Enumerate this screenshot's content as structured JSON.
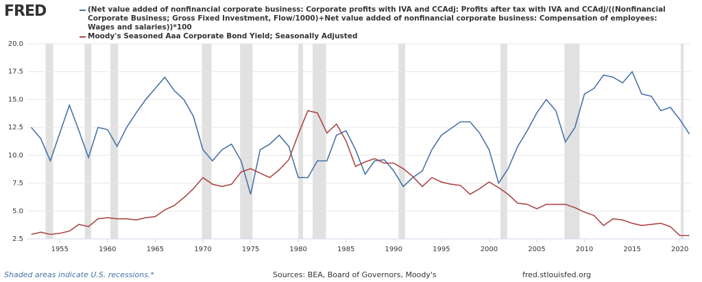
{
  "header": {
    "logo": "FRED"
  },
  "chart_data": {
    "type": "line",
    "x": [
      1952,
      1953,
      1954,
      1955,
      1956,
      1957,
      1958,
      1959,
      1960,
      1961,
      1962,
      1963,
      1964,
      1965,
      1966,
      1967,
      1968,
      1969,
      1970,
      1971,
      1972,
      1973,
      1974,
      1975,
      1976,
      1977,
      1978,
      1979,
      1980,
      1981,
      1982,
      1983,
      1984,
      1985,
      1986,
      1987,
      1988,
      1989,
      1990,
      1991,
      1992,
      1993,
      1994,
      1995,
      1996,
      1997,
      1998,
      1999,
      2000,
      2001,
      2002,
      2003,
      2004,
      2005,
      2006,
      2007,
      2008,
      2009,
      2010,
      2011,
      2012,
      2013,
      2014,
      2015,
      2016,
      2017,
      2018,
      2019,
      2020,
      2021
    ],
    "series": [
      {
        "name": "(Net value added of nonfinancial corporate business: Corporate profits with IVA and CCAdj: Profits after tax with IVA and CCAdj/((Nonfinancial Corporate Business; Gross Fixed Investment, Flow/1000)+Net value added of nonfinancial corporate business: Compensation of employees: Wages and salaries))*100",
        "color": "#4572a7",
        "values": [
          12.5,
          11.5,
          9.5,
          12.0,
          14.5,
          12.2,
          9.8,
          12.5,
          12.3,
          10.8,
          12.5,
          13.8,
          15.0,
          16.0,
          17.0,
          15.8,
          15.0,
          13.5,
          10.5,
          9.5,
          10.5,
          11.0,
          9.5,
          6.5,
          10.5,
          11.0,
          11.8,
          10.8,
          8.0,
          8.0,
          9.5,
          9.5,
          11.8,
          12.2,
          10.5,
          8.3,
          9.5,
          9.6,
          8.6,
          7.2,
          8.0,
          8.6,
          10.5,
          11.8,
          12.4,
          13.0,
          13.0,
          12.0,
          10.5,
          7.5,
          8.8,
          10.8,
          12.2,
          13.8,
          15.0,
          14.0,
          11.2,
          12.5,
          15.5,
          16.0,
          17.2,
          17.0,
          16.5,
          17.5,
          15.5,
          15.3,
          14.0,
          14.3,
          13.2,
          11.9
        ]
      },
      {
        "name": "Moody's Seasoned Aaa Corporate Bond Yield; Seasonally Adjusted",
        "color": "#aa4643",
        "values": [
          2.9,
          3.1,
          2.9,
          3.0,
          3.2,
          3.8,
          3.6,
          4.3,
          4.4,
          4.3,
          4.3,
          4.2,
          4.4,
          4.5,
          5.1,
          5.5,
          6.2,
          7.0,
          8.0,
          7.4,
          7.2,
          7.4,
          8.5,
          8.8,
          8.4,
          8.0,
          8.7,
          9.6,
          11.9,
          14.0,
          13.8,
          12.0,
          12.8,
          11.3,
          9.0,
          9.4,
          9.7,
          9.3,
          9.3,
          8.8,
          8.1,
          7.2,
          8.0,
          7.6,
          7.4,
          7.3,
          6.5,
          7.0,
          7.6,
          7.1,
          6.5,
          5.7,
          5.6,
          5.2,
          5.6,
          5.6,
          5.6,
          5.3,
          4.9,
          4.6,
          3.7,
          4.3,
          4.2,
          3.9,
          3.7,
          3.8,
          3.9,
          3.6,
          2.8,
          2.8
        ]
      }
    ],
    "recessions": [
      [
        1953.5,
        1954.3
      ],
      [
        1957.6,
        1958.3
      ],
      [
        1960.3,
        1961.1
      ],
      [
        1969.9,
        1970.9
      ],
      [
        1973.9,
        1975.2
      ],
      [
        1980.0,
        1980.5
      ],
      [
        1981.5,
        1982.9
      ],
      [
        1990.5,
        1991.2
      ],
      [
        2001.2,
        2001.9
      ],
      [
        2007.9,
        2009.5
      ],
      [
        2020.1,
        2020.4
      ]
    ],
    "recession_color": "#e1e1e1",
    "xlim": [
      1951.6,
      2021.1
    ],
    "xticks": [
      1955,
      1960,
      1965,
      1970,
      1975,
      1980,
      1985,
      1990,
      1995,
      2000,
      2005,
      2010,
      2015,
      2020
    ],
    "ylim": [
      2.5,
      20
    ],
    "yticks": [
      2.5,
      {
        "value": 5,
        "label": "5.0"
      },
      7.5,
      {
        "value": 10,
        "label": "10.0"
      },
      12.5,
      {
        "value": 15,
        "label": "15.0"
      },
      17.5,
      {
        "value": 20,
        "label": "20.0"
      }
    ],
    "grid": true,
    "note": "Shaded areas indicate U.S. recessions.*",
    "source": "Sources: BEA, Board of Governors, Moody's",
    "site": "fred.stlouisfed.org"
  }
}
